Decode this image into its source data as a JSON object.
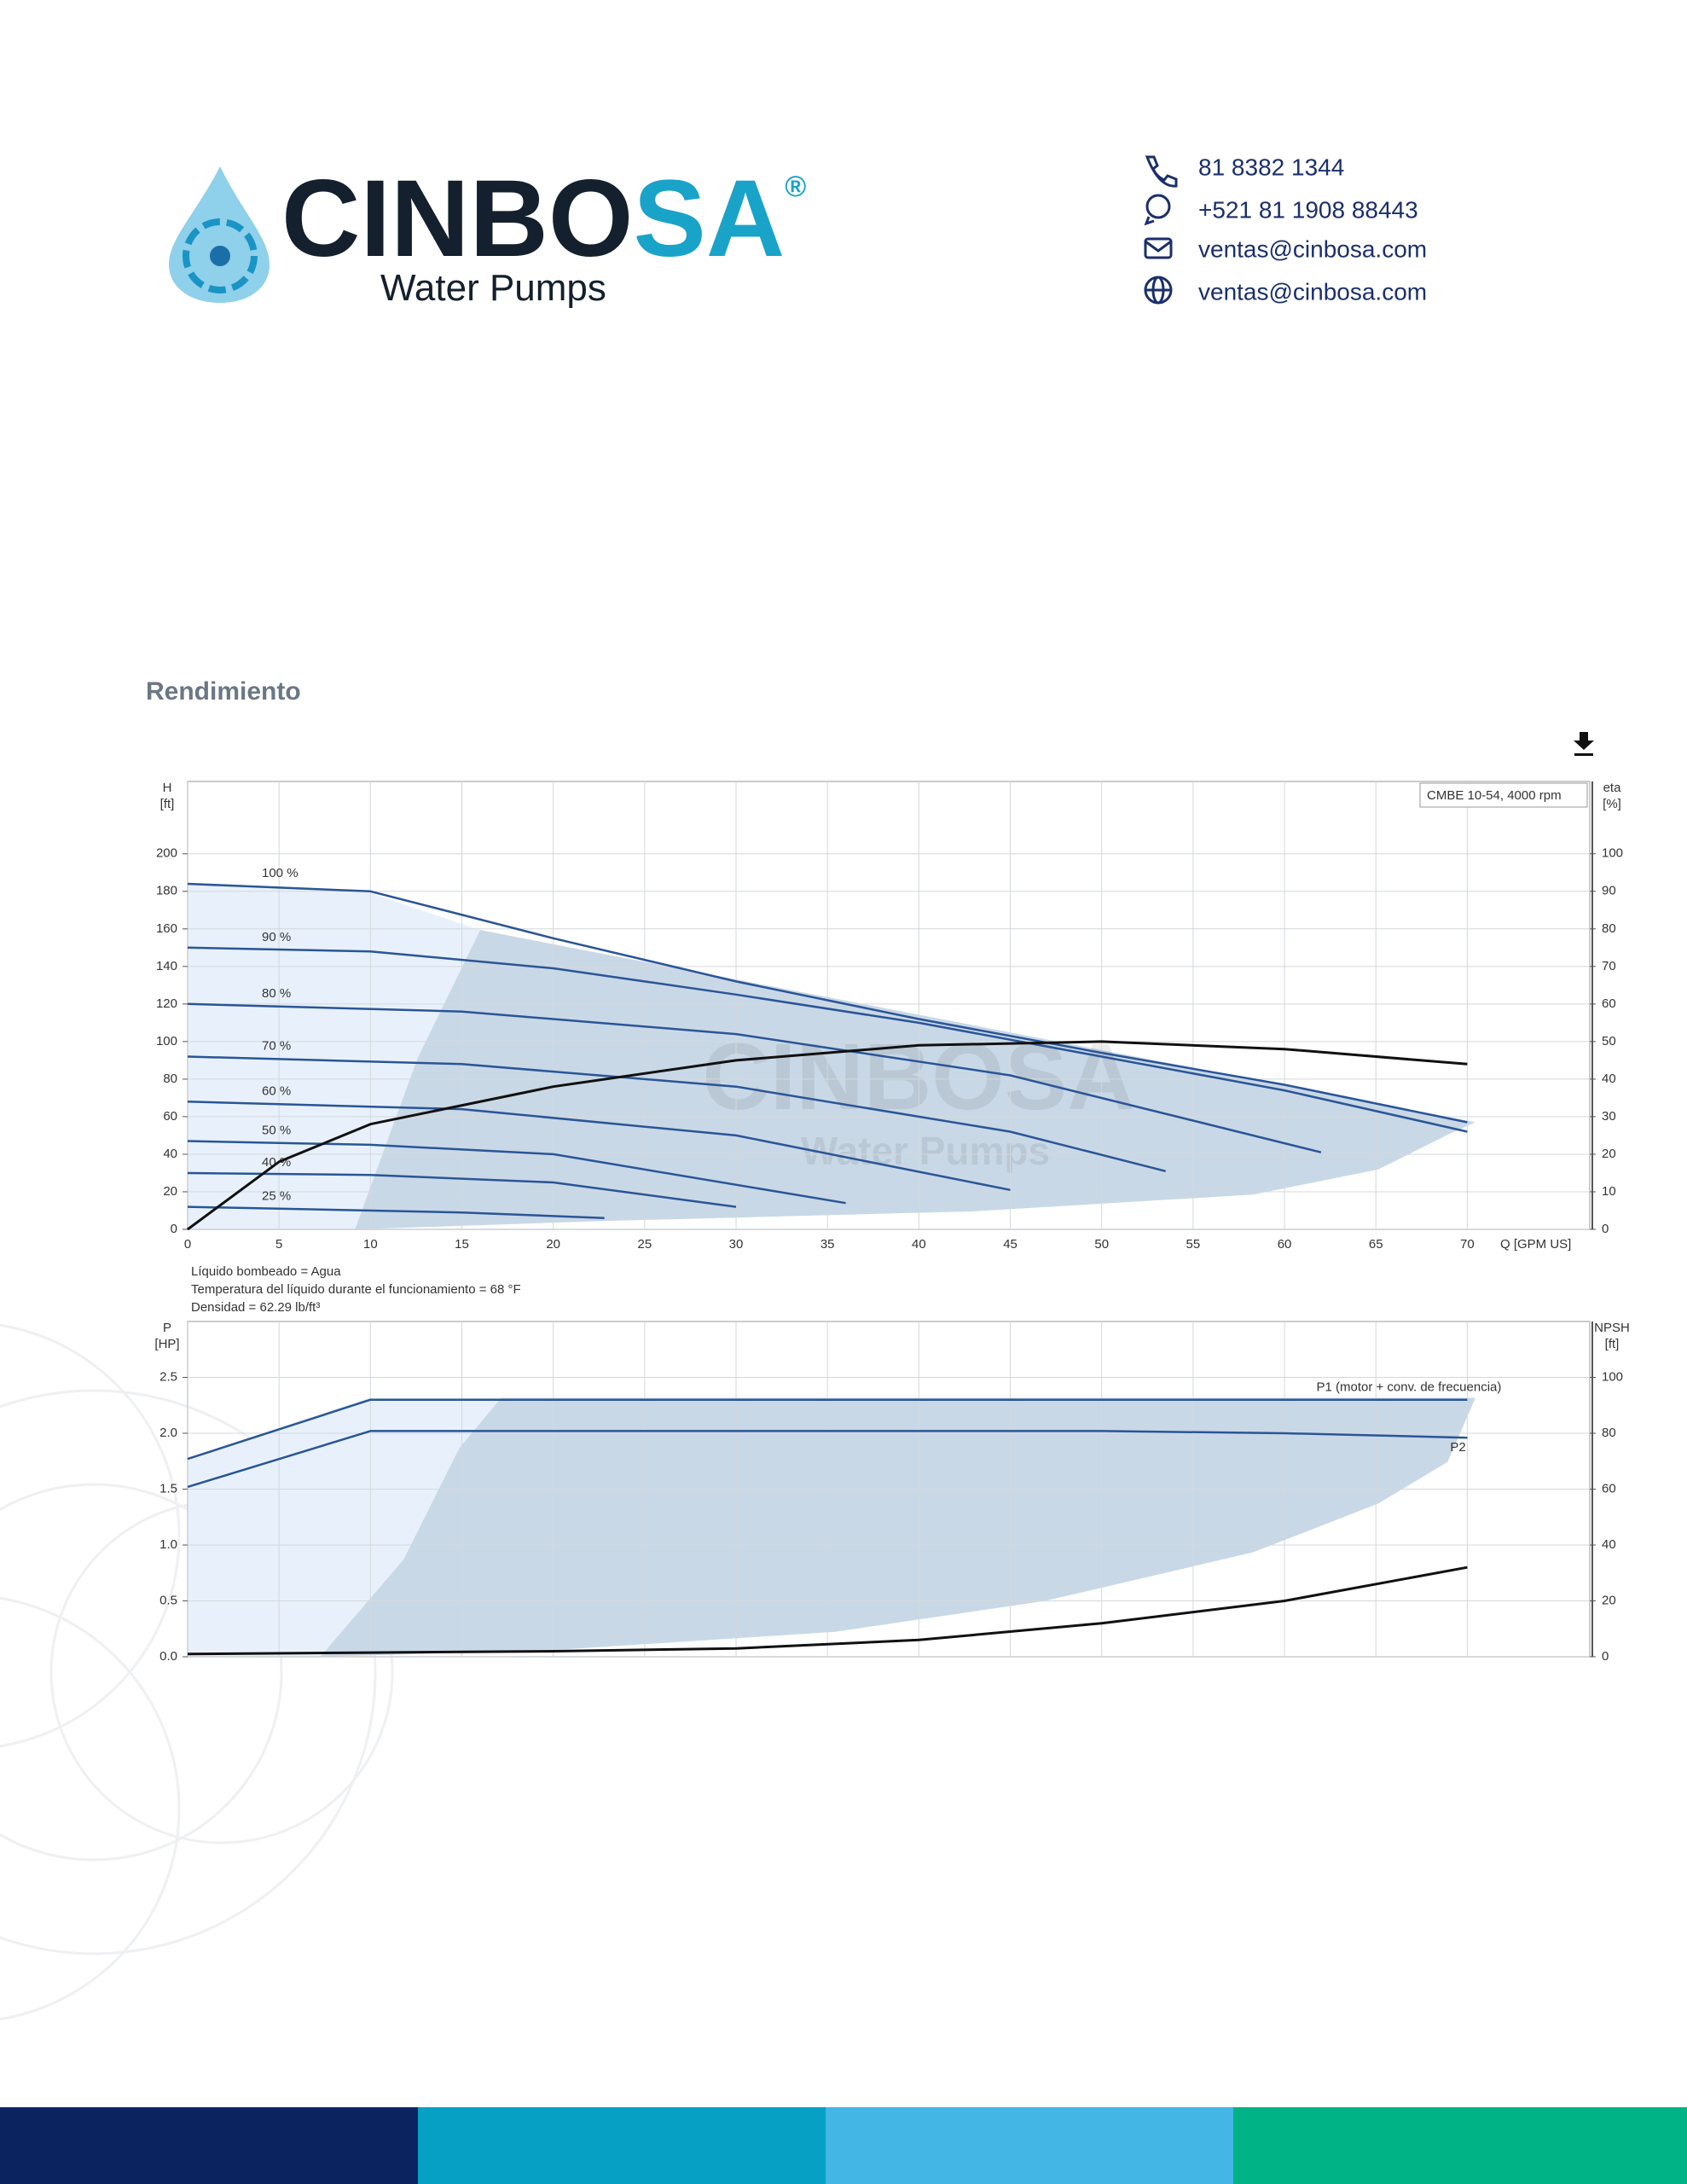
{
  "header": {
    "brand": [
      "CINBO",
      "SA"
    ],
    "registered": "®",
    "tagline": "Water Pumps",
    "contacts": [
      "81 8382 1344",
      "+521 81 1908 88443",
      "ventas@cinbosa.com",
      "ventas@cinbosa.com"
    ]
  },
  "section_title": "Rendimiento",
  "watermark": [
    "CINBOSA",
    "Water Pumps"
  ],
  "chart_data": [
    {
      "type": "line",
      "annotation": "CMBE 10-54, 4000 rpm",
      "xlabel": "Q [GPM US]",
      "ylabel": "H",
      "yunit": "[ft]",
      "y2label": "eta",
      "y2unit": "[%]",
      "xlim": [
        0,
        76.7
      ],
      "xticks": [
        0,
        5,
        10,
        15,
        20,
        25,
        30,
        35,
        40,
        45,
        50,
        55,
        60,
        65,
        70
      ],
      "ylim": [
        0,
        238.5
      ],
      "yticks": [
        0,
        20,
        40,
        60,
        80,
        100,
        120,
        140,
        160,
        180,
        200
      ],
      "y2lim": [
        0,
        119.25
      ],
      "y2ticks": [
        0,
        10,
        20,
        30,
        40,
        50,
        60,
        70,
        80,
        90,
        100
      ],
      "grid": true,
      "notes": [
        "Líquido bombeado = Agua",
        "Temperatura del líquido durante el funcionamiento = 68 °F",
        "Densidad = 62.29 lb/ft³"
      ],
      "series": [
        {
          "name": "100 %",
          "color": "#2a5597",
          "x": [
            0,
            10,
            20,
            30,
            40,
            50,
            60,
            70
          ],
          "values": [
            184,
            180,
            155,
            132,
            112,
            94,
            77,
            57
          ]
        },
        {
          "name": "90 %",
          "color": "#2a5597",
          "x": [
            0,
            10,
            20,
            30,
            40,
            50,
            60,
            70
          ],
          "values": [
            150,
            148,
            139,
            125,
            110,
            92,
            74,
            52
          ]
        },
        {
          "name": "80 %",
          "color": "#2a5597",
          "x": [
            0,
            15,
            30,
            45,
            62
          ],
          "values": [
            120,
            116,
            104,
            82,
            41
          ]
        },
        {
          "name": "70 %",
          "color": "#2a5597",
          "x": [
            0,
            15,
            30,
            45,
            53.5
          ],
          "values": [
            92,
            88,
            76,
            52,
            31
          ]
        },
        {
          "name": "60 %",
          "color": "#2a5597",
          "x": [
            0,
            15,
            30,
            45
          ],
          "values": [
            68,
            64,
            50,
            21
          ]
        },
        {
          "name": "50 %",
          "color": "#2a5597",
          "x": [
            0,
            10,
            20,
            36
          ],
          "values": [
            47,
            45,
            40,
            14
          ]
        },
        {
          "name": "40 %",
          "color": "#2a5597",
          "x": [
            0,
            10,
            20,
            30
          ],
          "values": [
            30,
            29,
            25,
            12
          ]
        },
        {
          "name": "25 %",
          "color": "#2a5597",
          "x": [
            0,
            5,
            15,
            22.8
          ],
          "values": [
            12,
            11,
            9,
            6
          ]
        },
        {
          "color": "#111111",
          "axis": "y2",
          "x": [
            0,
            5,
            10,
            20,
            30,
            40,
            50,
            60,
            70
          ],
          "values": [
            0,
            18,
            28,
            38,
            45,
            49,
            50,
            48,
            44
          ]
        }
      ]
    },
    {
      "type": "line",
      "ylabel": "P",
      "yunit": "[HP]",
      "y2label": "NPSH",
      "y2unit": "[ft]",
      "xlim": [
        0,
        76.7
      ],
      "xticks": [
        0,
        5,
        10,
        15,
        20,
        25,
        30,
        35,
        40,
        45,
        50,
        55,
        60,
        65,
        70
      ],
      "ylim": [
        0,
        3
      ],
      "yticks": [
        {
          "value": 0,
          "label": "0.0"
        },
        0.5,
        {
          "value": 1,
          "label": "1.0"
        },
        1.5,
        {
          "value": 2,
          "label": "2.0"
        },
        2.5
      ],
      "y2lim": [
        0,
        120
      ],
      "y2ticks": [
        0,
        20,
        40,
        60,
        80,
        100
      ],
      "grid": true,
      "series": [
        {
          "name": "P1 (motor + conv. de frecuencia)",
          "color": "#2a5597",
          "x": [
            0,
            10,
            20,
            30,
            40,
            50,
            60,
            70
          ],
          "values": [
            1.77,
            2.3,
            2.3,
            2.3,
            2.3,
            2.3,
            2.3,
            2.3
          ]
        },
        {
          "name": "P2",
          "color": "#2a5597",
          "x": [
            0,
            10,
            20,
            30,
            40,
            50,
            60,
            70
          ],
          "values": [
            1.52,
            2.02,
            2.02,
            2.02,
            2.02,
            2.02,
            2.0,
            1.96
          ]
        },
        {
          "color": "#111111",
          "axis": "y2",
          "x": [
            0,
            10,
            20,
            30,
            40,
            50,
            60,
            70
          ],
          "values": [
            1,
            1.5,
            2,
            3,
            6,
            12,
            20,
            32
          ]
        }
      ]
    }
  ]
}
